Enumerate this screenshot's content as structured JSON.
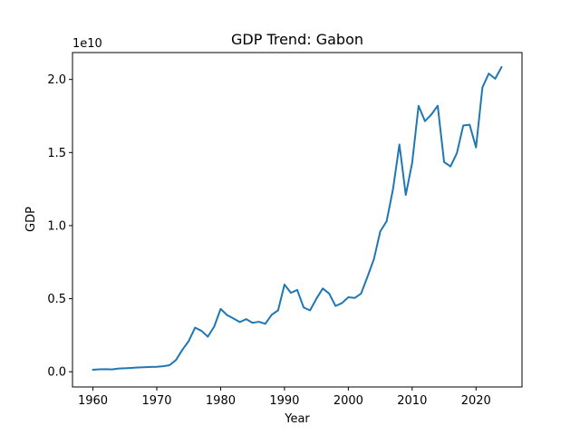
{
  "chart_data": {
    "type": "line",
    "title": "GDP Trend: Gabon",
    "xlabel": "Year",
    "ylabel": "GDP",
    "y_multiplier_label": "1e10",
    "xlim": [
      1956.8,
      2027.2
    ],
    "ylim": [
      -0.104,
      2.184
    ],
    "x_ticks": [
      1960,
      1970,
      1980,
      1990,
      2000,
      2010,
      2020
    ],
    "y_ticks": [
      0.0,
      0.5,
      1.0,
      1.5,
      2.0
    ],
    "y_tick_labels": [
      "0.0",
      "0.5",
      "1.0",
      "1.5",
      "2.0"
    ],
    "grid": false,
    "series": [
      {
        "color": "#1f77b4",
        "x": [
          1960,
          1961,
          1962,
          1963,
          1964,
          1965,
          1966,
          1967,
          1968,
          1969,
          1970,
          1971,
          1972,
          1973,
          1974,
          1975,
          1976,
          1977,
          1978,
          1979,
          1980,
          1981,
          1982,
          1983,
          1984,
          1985,
          1986,
          1987,
          1988,
          1989,
          1990,
          1991,
          1992,
          1993,
          1994,
          1995,
          1996,
          1997,
          1998,
          1999,
          2000,
          2001,
          2002,
          2003,
          2004,
          2005,
          2006,
          2007,
          2008,
          2009,
          2010,
          2011,
          2012,
          2013,
          2014,
          2015,
          2016,
          2017,
          2018,
          2019,
          2020,
          2021,
          2022,
          2023,
          2024
        ],
        "values": [
          0.014,
          0.017,
          0.018,
          0.016,
          0.022,
          0.024,
          0.026,
          0.029,
          0.031,
          0.033,
          0.034,
          0.038,
          0.045,
          0.08,
          0.15,
          0.21,
          0.302,
          0.28,
          0.24,
          0.31,
          0.43,
          0.388,
          0.365,
          0.34,
          0.36,
          0.335,
          0.342,
          0.328,
          0.39,
          0.42,
          0.597,
          0.54,
          0.56,
          0.44,
          0.42,
          0.5,
          0.57,
          0.535,
          0.45,
          0.47,
          0.51,
          0.505,
          0.535,
          0.65,
          0.77,
          0.96,
          1.03,
          1.25,
          1.555,
          1.21,
          1.43,
          1.82,
          1.715,
          1.76,
          1.82,
          1.435,
          1.405,
          1.495,
          1.685,
          1.69,
          1.535,
          1.945,
          2.04,
          2.005,
          2.085
        ]
      }
    ]
  }
}
